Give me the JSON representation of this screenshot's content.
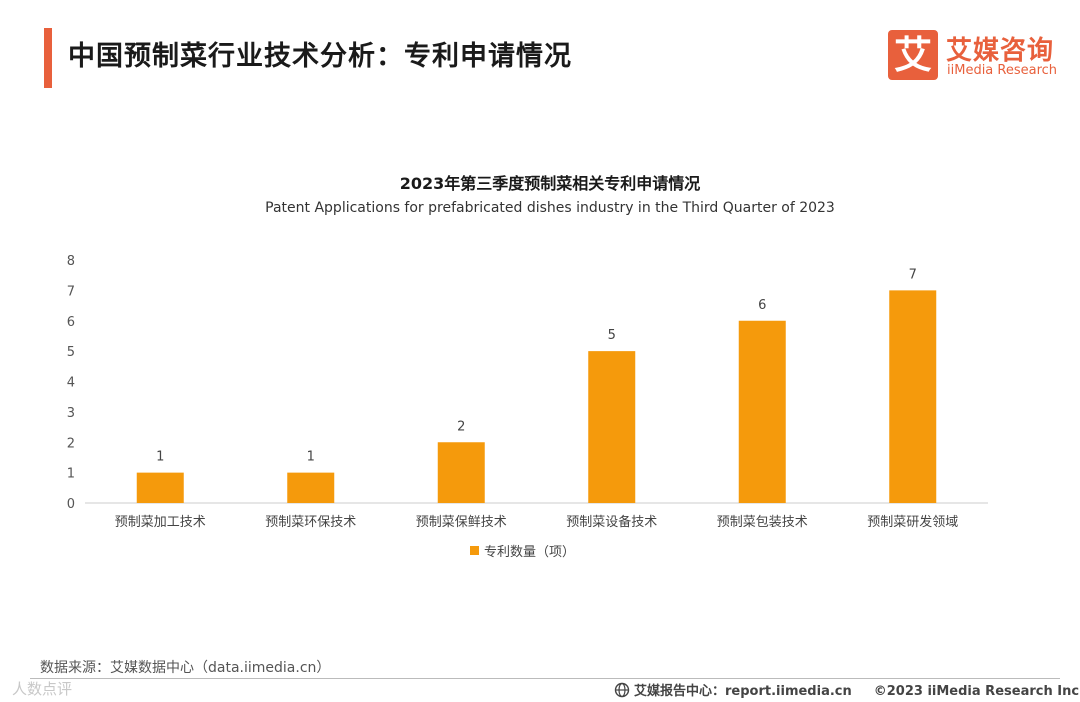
{
  "header": {
    "title": "中国预制菜行业技术分析：专利申请情况",
    "logo_mark": "艾",
    "logo_cn": "艾媒咨询",
    "logo_en": "iiMedia Research"
  },
  "chart_data": {
    "type": "bar",
    "title": "2023年第三季度预制菜相关专利申请情况",
    "subtitle": "Patent Applications for prefabricated dishes industry in the Third Quarter of 2023",
    "categories": [
      "预制菜加工技术",
      "预制菜环保技术",
      "预制菜保鲜技术",
      "预制菜设备技术",
      "预制菜包装技术",
      "预制菜研发领域"
    ],
    "series": [
      {
        "name": "专利数量（项）",
        "values": [
          1,
          1,
          2,
          5,
          6,
          7
        ]
      }
    ],
    "ylim": [
      0,
      8
    ],
    "yticks": [
      0,
      1,
      2,
      3,
      4,
      5,
      6,
      7,
      8
    ],
    "bar_color": "#f59a0c",
    "legend_position": "bottom-center",
    "grid": false
  },
  "footer": {
    "source": "数据来源：艾媒数据中心（data.iimedia.cn）",
    "watermark": "人数点评",
    "report_center": "艾媒报告中心：report.iimedia.cn",
    "copyright": "©2023  iiMedia Research  Inc"
  }
}
